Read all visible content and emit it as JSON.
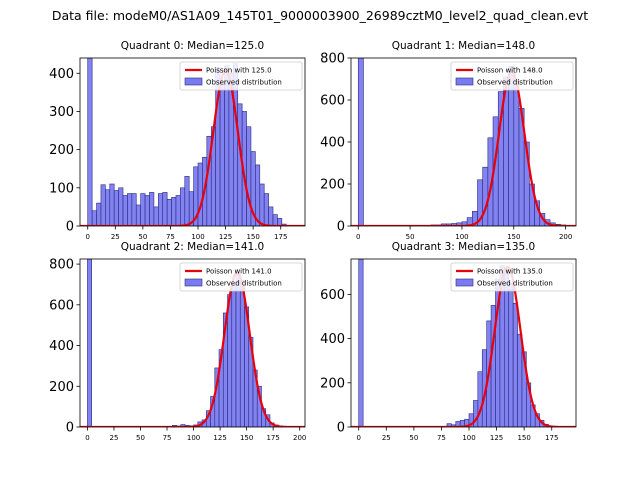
{
  "figure": {
    "suptitle": "Data file: modeM0/AS1A09_145T01_9000003900_26989cztM0_level2_quad_clean.evt"
  },
  "colors": {
    "bar_fill": "#7b7bf0",
    "bar_edge": "#2a2a80",
    "poisson_line": "#e8000b"
  },
  "chart_data": [
    {
      "type": "bar",
      "title": "Quadrant 0: Median=125.0",
      "median": 125.0,
      "xlim": [
        -7,
        197
      ],
      "ylim": [
        0,
        440
      ],
      "xticks": [
        0,
        25,
        50,
        75,
        100,
        125,
        150,
        175
      ],
      "yticks": [
        0,
        100,
        200,
        300,
        400
      ],
      "bin_width": 4,
      "bins": [
        [
          0,
          440
        ],
        [
          4,
          40
        ],
        [
          8,
          60
        ],
        [
          12,
          108
        ],
        [
          16,
          95
        ],
        [
          20,
          110
        ],
        [
          24,
          93
        ],
        [
          28,
          100
        ],
        [
          32,
          80
        ],
        [
          36,
          85
        ],
        [
          40,
          85
        ],
        [
          44,
          55
        ],
        [
          48,
          85
        ],
        [
          52,
          80
        ],
        [
          56,
          88
        ],
        [
          60,
          50
        ],
        [
          64,
          85
        ],
        [
          68,
          88
        ],
        [
          72,
          70
        ],
        [
          76,
          75
        ],
        [
          80,
          80
        ],
        [
          84,
          100
        ],
        [
          88,
          130
        ],
        [
          92,
          90
        ],
        [
          96,
          155
        ],
        [
          100,
          165
        ],
        [
          104,
          180
        ],
        [
          108,
          235
        ],
        [
          112,
          260
        ],
        [
          116,
          415
        ],
        [
          120,
          380
        ],
        [
          124,
          420
        ],
        [
          128,
          400
        ],
        [
          132,
          425
        ],
        [
          136,
          320
        ],
        [
          140,
          300
        ],
        [
          144,
          260
        ],
        [
          148,
          195
        ],
        [
          152,
          160
        ],
        [
          156,
          110
        ],
        [
          160,
          85
        ],
        [
          164,
          50
        ],
        [
          168,
          30
        ],
        [
          172,
          20
        ],
        [
          176,
          5
        ]
      ],
      "poisson_peak": 406,
      "legend": {
        "line_label": "Poisson with 125.0",
        "bar_label": "Observed distribution",
        "loc": "upper right"
      }
    },
    {
      "type": "bar",
      "title": "Quadrant 1: Median=148.0",
      "median": 148.0,
      "xlim": [
        -7,
        210
      ],
      "ylim": [
        0,
        800
      ],
      "xticks": [
        0,
        50,
        100,
        150,
        200
      ],
      "yticks": [
        0,
        200,
        400,
        600,
        800
      ],
      "bin_width": 5,
      "bins": [
        [
          0,
          800
        ],
        [
          70,
          5
        ],
        [
          75,
          5
        ],
        [
          80,
          10
        ],
        [
          85,
          10
        ],
        [
          90,
          12
        ],
        [
          95,
          15
        ],
        [
          100,
          20
        ],
        [
          105,
          40
        ],
        [
          110,
          70
        ],
        [
          115,
          220
        ],
        [
          120,
          280
        ],
        [
          125,
          420
        ],
        [
          130,
          520
        ],
        [
          135,
          640
        ],
        [
          140,
          710
        ],
        [
          145,
          760
        ],
        [
          150,
          700
        ],
        [
          155,
          560
        ],
        [
          160,
          400
        ],
        [
          165,
          200
        ],
        [
          170,
          120
        ],
        [
          175,
          60
        ],
        [
          180,
          30
        ],
        [
          185,
          15
        ],
        [
          190,
          8
        ],
        [
          195,
          5
        ]
      ],
      "poisson_peak": 735,
      "legend": {
        "line_label": "Poisson with 148.0",
        "bar_label": "Observed distribution",
        "loc": "upper right"
      }
    },
    {
      "type": "bar",
      "title": "Quadrant 2: Median=141.0",
      "median": 141.0,
      "xlim": [
        -7,
        205
      ],
      "ylim": [
        0,
        825
      ],
      "xticks": [
        0,
        25,
        50,
        75,
        100,
        125,
        150,
        175,
        200
      ],
      "yticks": [
        0,
        200,
        400,
        600,
        800
      ],
      "bin_width": 4,
      "bins": [
        [
          0,
          825
        ],
        [
          80,
          8
        ],
        [
          84,
          5
        ],
        [
          88,
          12
        ],
        [
          92,
          8
        ],
        [
          96,
          6
        ],
        [
          100,
          10
        ],
        [
          104,
          25
        ],
        [
          108,
          35
        ],
        [
          112,
          80
        ],
        [
          116,
          150
        ],
        [
          120,
          290
        ],
        [
          124,
          380
        ],
        [
          128,
          560
        ],
        [
          132,
          650
        ],
        [
          136,
          700
        ],
        [
          140,
          750
        ],
        [
          144,
          720
        ],
        [
          148,
          590
        ],
        [
          152,
          440
        ],
        [
          156,
          280
        ],
        [
          160,
          200
        ],
        [
          164,
          90
        ],
        [
          168,
          60
        ],
        [
          172,
          20
        ],
        [
          176,
          10
        ],
        [
          180,
          5
        ]
      ],
      "poisson_peak": 760,
      "legend": {
        "line_label": "Poisson with 141.0",
        "bar_label": "Observed distribution",
        "loc": "upper right"
      }
    },
    {
      "type": "bar",
      "title": "Quadrant 3: Median=135.0",
      "median": 135.0,
      "xlim": [
        -7,
        197
      ],
      "ylim": [
        0,
        760
      ],
      "xticks": [
        0,
        25,
        50,
        75,
        100,
        125,
        150,
        175
      ],
      "yticks": [
        0,
        200,
        400,
        600
      ],
      "bin_width": 4,
      "bins": [
        [
          0,
          760
        ],
        [
          80,
          15
        ],
        [
          84,
          10
        ],
        [
          88,
          25
        ],
        [
          92,
          30
        ],
        [
          96,
          35
        ],
        [
          100,
          60
        ],
        [
          104,
          120
        ],
        [
          108,
          250
        ],
        [
          112,
          350
        ],
        [
          116,
          480
        ],
        [
          120,
          550
        ],
        [
          124,
          670
        ],
        [
          128,
          730
        ],
        [
          132,
          720
        ],
        [
          136,
          650
        ],
        [
          140,
          560
        ],
        [
          144,
          420
        ],
        [
          148,
          340
        ],
        [
          152,
          200
        ],
        [
          156,
          100
        ],
        [
          160,
          60
        ],
        [
          164,
          30
        ],
        [
          168,
          12
        ],
        [
          172,
          5
        ]
      ],
      "poisson_peak": 725,
      "legend": {
        "line_label": "Poisson with 135.0",
        "bar_label": "Observed distribution",
        "loc": "upper right"
      }
    }
  ]
}
